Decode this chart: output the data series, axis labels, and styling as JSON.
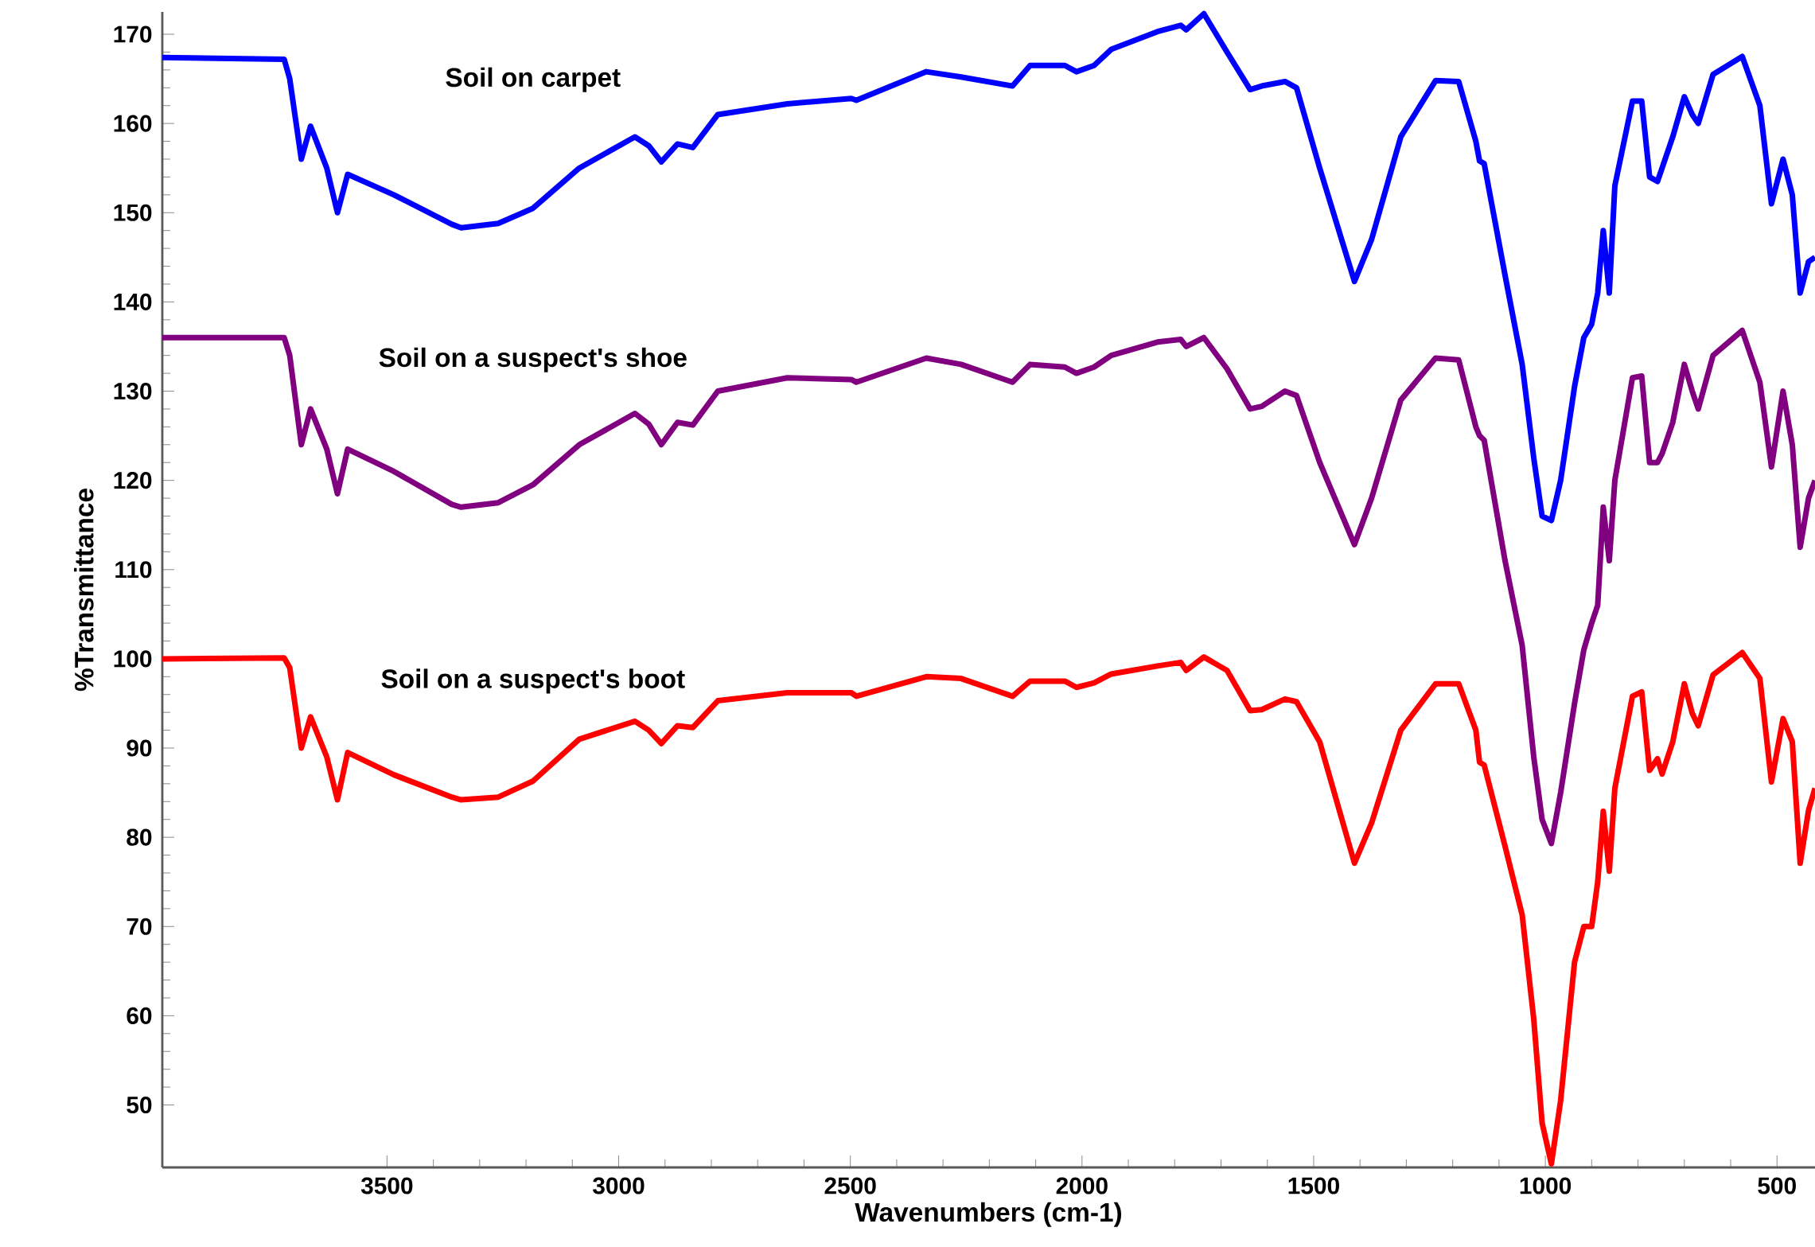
{
  "chart_data": {
    "type": "line",
    "xlabel": "Wavenumbers (cm-1)",
    "ylabel": "%Transmittance",
    "xlim": [
      3985,
      418
    ],
    "ylim": [
      43,
      172.5
    ],
    "xticks": [
      3500,
      3000,
      2500,
      2000,
      1500,
      1000,
      500
    ],
    "yticks": [
      50,
      60,
      70,
      80,
      90,
      100,
      110,
      120,
      130,
      140,
      150,
      160,
      170
    ],
    "x": [
      3985,
      3722,
      3710,
      3685,
      3665,
      3630,
      3607,
      3585,
      3485,
      3360,
      3340,
      3260,
      3185,
      3085,
      2965,
      2935,
      2908,
      2873,
      2840,
      2786,
      2636,
      2498,
      2487,
      2336,
      2261,
      2150,
      2112,
      2037,
      2012,
      1974,
      1937,
      1837,
      1787,
      1775,
      1737,
      1687,
      1637,
      1612,
      1562,
      1537,
      1487,
      1412,
      1375,
      1312,
      1237,
      1187,
      1150,
      1142,
      1132,
      1087,
      1050,
      1025,
      1007,
      987,
      967,
      937,
      917,
      900,
      887,
      875,
      862,
      850,
      812,
      792,
      775,
      758,
      748,
      725,
      700,
      683,
      670,
      638,
      575,
      537,
      512,
      487,
      467,
      450,
      432,
      418
    ],
    "series": [
      {
        "name": "Soil on carpet",
        "color": "#0000ff",
        "values": [
          167.4,
          167.2,
          165,
          156,
          159.7,
          155,
          150,
          154.3,
          152,
          148.7,
          148.3,
          148.8,
          150.5,
          155,
          158.5,
          157.5,
          155.7,
          157.7,
          157.3,
          161,
          162.2,
          162.8,
          162.6,
          165.8,
          165.2,
          164.2,
          166.5,
          166.5,
          165.8,
          166.5,
          168.3,
          170.3,
          171,
          170.5,
          172.3,
          168,
          163.8,
          164.2,
          164.7,
          164,
          155,
          142.3,
          147,
          158.5,
          164.8,
          164.7,
          158,
          155.8,
          155.5,
          143,
          133,
          122.5,
          116,
          115.5,
          120,
          130.5,
          136,
          137.5,
          141,
          148,
          141,
          153,
          162.5,
          162.5,
          154,
          153.5,
          155,
          158.5,
          163,
          161,
          160,
          165.5,
          167.5,
          162,
          151,
          156,
          152,
          141,
          144.5,
          145
        ]
      },
      {
        "name": "Soil on a suspect's shoe",
        "color": "#800080",
        "values": [
          136,
          136,
          134,
          124,
          128,
          123.5,
          118.5,
          123.5,
          121,
          117.3,
          117,
          117.5,
          119.5,
          124,
          127.5,
          126.3,
          124,
          126.5,
          126.2,
          130,
          131.5,
          131.3,
          131,
          133.7,
          133,
          131,
          133,
          132.7,
          132,
          132.7,
          134,
          135.5,
          135.8,
          135,
          136,
          132.5,
          128,
          128.3,
          130,
          129.5,
          122,
          112.8,
          118,
          129,
          133.7,
          133.5,
          126,
          125,
          124.5,
          111,
          101.5,
          89,
          82,
          79.3,
          85,
          95,
          101,
          104,
          106,
          117,
          111,
          120,
          131.5,
          131.7,
          122,
          122,
          123,
          126.5,
          133,
          130,
          128,
          134,
          136.8,
          131,
          121.5,
          130,
          124,
          112.5,
          118,
          120
        ]
      },
      {
        "name": "Soil on a suspect's boot",
        "color": "#ff0000",
        "values": [
          100.0,
          100.1,
          99,
          90,
          93.5,
          89,
          84.2,
          89.5,
          87,
          84.5,
          84.2,
          84.5,
          86.3,
          91,
          93,
          92,
          90.5,
          92.5,
          92.3,
          95.3,
          96.2,
          96.2,
          95.8,
          98.0,
          97.8,
          95.8,
          97.5,
          97.5,
          96.8,
          97.3,
          98.3,
          99.2,
          99.6,
          98.7,
          100.2,
          98.7,
          94.2,
          94.3,
          95.5,
          95.2,
          90.7,
          77.1,
          81.6,
          92,
          97.2,
          97.2,
          92,
          88.4,
          88.1,
          79,
          71.3,
          59.6,
          48,
          43.4,
          50.5,
          66,
          70,
          70,
          75,
          82.9,
          76.2,
          85.5,
          95.8,
          96.3,
          87.5,
          88.8,
          87.1,
          90.7,
          97.2,
          93.9,
          92.5,
          98.2,
          100.7,
          97.8,
          86.2,
          93.3,
          90.7,
          77.1,
          83,
          85.5
        ]
      }
    ]
  }
}
